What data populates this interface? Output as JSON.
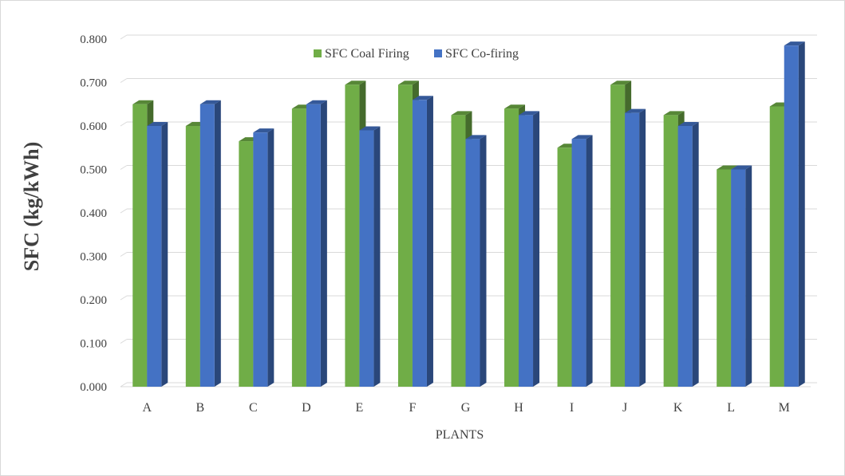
{
  "chart_data": {
    "type": "bar",
    "title": "",
    "xlabel": "PLANTS",
    "ylabel": "SFC (kg/kWh)",
    "ylim": [
      0,
      0.8
    ],
    "yticks": [
      "0.000",
      "0.100",
      "0.200",
      "0.300",
      "0.400",
      "0.500",
      "0.600",
      "0.700",
      "0.800"
    ],
    "grid": true,
    "legend_position": "top-center",
    "categories": [
      "A",
      "B",
      "C",
      "D",
      "E",
      "F",
      "G",
      "H",
      "I",
      "J",
      "K",
      "L",
      "M"
    ],
    "series": [
      {
        "name": "SFC Coal Firing",
        "color": "#70ad47",
        "values": [
          0.65,
          0.6,
          0.565,
          0.64,
          0.695,
          0.695,
          0.625,
          0.64,
          0.55,
          0.695,
          0.625,
          0.5,
          0.645
        ]
      },
      {
        "name": "SFC Co-firing",
        "color": "#4472c4",
        "values": [
          0.6,
          0.65,
          0.585,
          0.65,
          0.59,
          0.66,
          0.57,
          0.625,
          0.57,
          0.63,
          0.6,
          0.5,
          0.785
        ]
      }
    ]
  }
}
